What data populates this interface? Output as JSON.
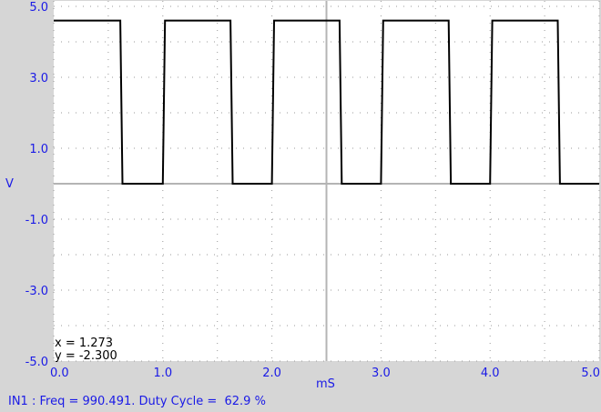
{
  "chart_data": {
    "type": "line",
    "title": "",
    "xlabel": "mS",
    "ylabel": "V",
    "xlim": [
      0.0,
      5.0
    ],
    "ylim": [
      -5.0,
      5.0
    ],
    "x_ticks": [
      0.0,
      1.0,
      2.0,
      3.0,
      4.0,
      5.0
    ],
    "x_tick_labels": [
      "0.0",
      "1.0",
      "2.0",
      "3.0",
      "4.0",
      "5.0"
    ],
    "y_ticks": [
      5.0,
      3.0,
      1.0,
      -1.0,
      -3.0,
      -5.0
    ],
    "y_tick_labels": [
      "5.0",
      "3.0",
      "1.0",
      "-1.0",
      "-3.0",
      "-5.0"
    ],
    "grid": true,
    "series": [
      {
        "name": "IN1",
        "x": [
          0.0,
          0.61,
          0.63,
          1.0,
          1.02,
          1.62,
          1.64,
          2.0,
          2.02,
          2.62,
          2.64,
          3.0,
          3.02,
          3.62,
          3.64,
          4.0,
          4.02,
          4.62,
          4.64,
          5.0
        ],
        "values": [
          4.6,
          4.6,
          0.0,
          0.0,
          4.6,
          4.6,
          0.0,
          0.0,
          4.6,
          4.6,
          0.0,
          0.0,
          4.6,
          4.6,
          0.0,
          0.0,
          4.6,
          4.6,
          0.0,
          0.0
        ]
      }
    ]
  },
  "cursor": {
    "x_text": "x = 1.273",
    "y_text": "y = -2.300"
  },
  "status": {
    "text": "IN1 : Freq = 990.491. Duty Cycle =  62.9 %"
  }
}
